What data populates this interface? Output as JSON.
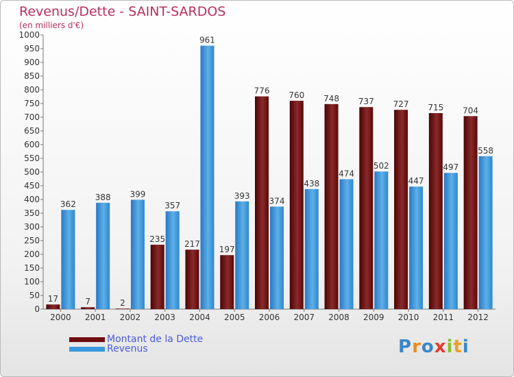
{
  "header": {
    "title": "Revenus/Dette - SAINT-SARDOS",
    "subtitle": "(en milliers d'€)"
  },
  "logo": {
    "text": "Proxiti",
    "letters": [
      "P",
      "r",
      "o",
      "x",
      "i",
      "t",
      "i"
    ],
    "colors": [
      "#3a86c8",
      "#f08a1c",
      "#3a86c8",
      "#e63a2e",
      "#8bbd2c",
      "#f0a020",
      "#3a86c8"
    ]
  },
  "colors": {
    "debt": "#6e0d0d",
    "revenue": "#3a98dc",
    "title": "#b5305e",
    "legend_text": "#4a5cd8"
  },
  "chart_data": {
    "type": "bar",
    "title": "Revenus/Dette - SAINT-SARDOS",
    "subtitle": "(en milliers d'€)",
    "categories": [
      "2000",
      "2001",
      "2002",
      "2003",
      "2004",
      "2005",
      "2006",
      "2007",
      "2008",
      "2009",
      "2010",
      "2011",
      "2012"
    ],
    "series": [
      {
        "name": "Montant de la Dette",
        "values": [
          17,
          7,
          2,
          235,
          217,
          197,
          776,
          760,
          748,
          737,
          727,
          715,
          704
        ]
      },
      {
        "name": "Revenus",
        "values": [
          362,
          388,
          399,
          357,
          961,
          393,
          374,
          438,
          474,
          502,
          447,
          497,
          558
        ]
      }
    ],
    "ylim": [
      0,
      1000
    ],
    "yticks": [
      0,
      50,
      100,
      150,
      200,
      250,
      300,
      350,
      400,
      450,
      500,
      550,
      600,
      650,
      700,
      750,
      800,
      850,
      900,
      950,
      1000
    ],
    "grid": false,
    "legend": "bottom-left",
    "data_labels": true
  }
}
